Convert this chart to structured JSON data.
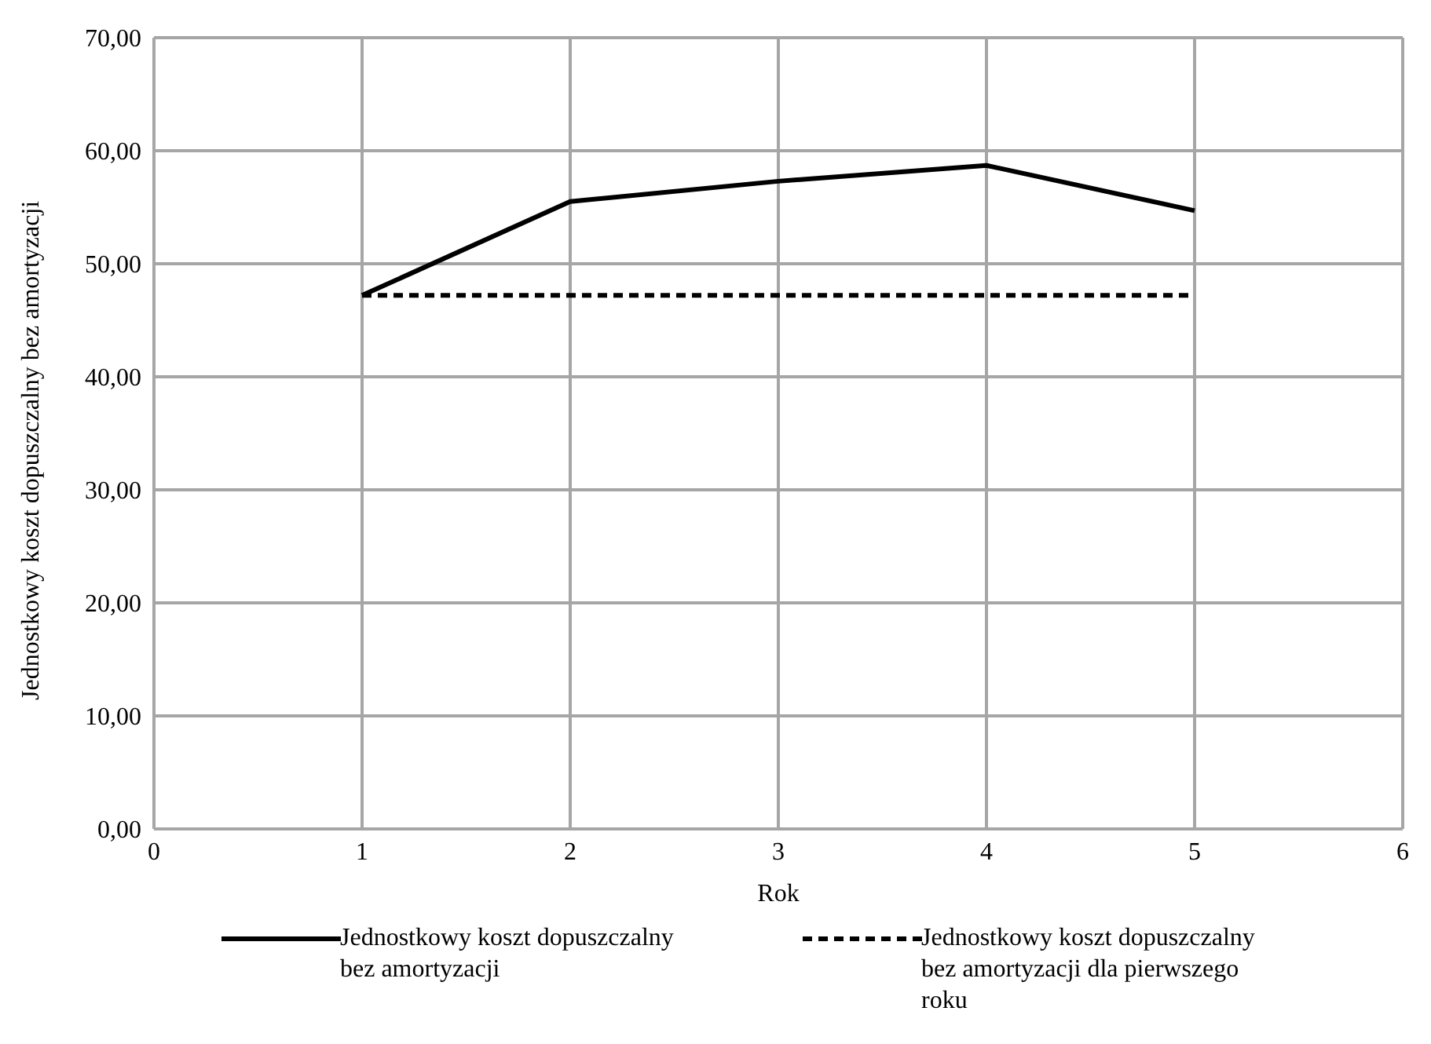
{
  "chart_data": {
    "type": "line",
    "xlabel": "Rok",
    "ylabel": "Jednostkowy koszt dopuszczalny bez amortyzacji",
    "x": [
      1,
      2,
      3,
      4,
      5
    ],
    "xlim": [
      0,
      6
    ],
    "xticks": [
      0,
      1,
      2,
      3,
      4,
      5,
      6
    ],
    "ylim": [
      0,
      70
    ],
    "yticks": [
      {
        "value": 0,
        "label": "0,00"
      },
      {
        "value": 10,
        "label": "10,00"
      },
      {
        "value": 20,
        "label": "20,00"
      },
      {
        "value": 30,
        "label": "30,00"
      },
      {
        "value": 40,
        "label": "40,00"
      },
      {
        "value": 50,
        "label": "50,00"
      },
      {
        "value": 60,
        "label": "60,00"
      },
      {
        "value": 70,
        "label": "70,00"
      }
    ],
    "grid": true,
    "legend": "bottom",
    "marker": "none",
    "series": [
      {
        "name": "Jednostkowy koszt dopuszczalny bez amortyzacji",
        "color": "#000000",
        "values": [
          47.2,
          55.5,
          57.3,
          58.7,
          54.7
        ],
        "line_style": "solid"
      },
      {
        "name": "Jednostkowy koszt dopuszczalny bez amortyzacji dla pierwszego roku",
        "color": "#000000",
        "values": [
          47.2,
          47.2,
          47.2,
          47.2,
          47.2
        ],
        "line_style": "dashed"
      }
    ]
  }
}
